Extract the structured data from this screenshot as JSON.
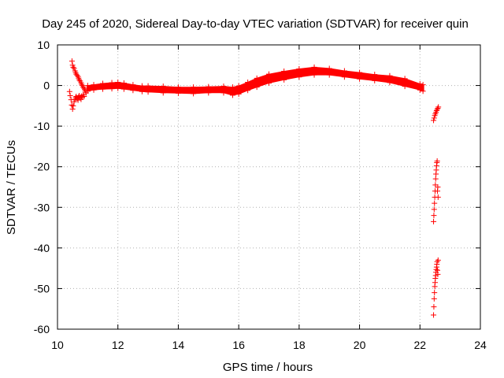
{
  "chart_data": {
    "type": "scatter",
    "title": "Day 245 of 2020, Sidereal Day-to-day VTEC variation (SDTVAR) for receiver quin",
    "xlabel": "GPS time / hours",
    "ylabel": "SDTVAR / TECUs",
    "xlim": [
      10,
      24
    ],
    "ylim": [
      -60,
      10
    ],
    "xticks": [
      10,
      12,
      14,
      16,
      18,
      20,
      22,
      24
    ],
    "yticks": [
      10,
      0,
      -10,
      -20,
      -30,
      -40,
      -50,
      -60
    ],
    "grid": true,
    "marker": "plus",
    "color": "#ff0000",
    "series": [
      {
        "name": "band-main",
        "style": "band",
        "x": [
          11.0,
          11.2,
          11.5,
          11.8,
          12.0,
          12.2,
          12.5,
          12.8,
          13.0,
          13.5,
          14.0,
          14.5,
          15.0,
          15.5,
          15.8,
          16.0,
          16.3,
          16.6,
          17.0,
          17.5,
          18.0,
          18.5,
          19.0,
          19.5,
          20.0,
          20.5,
          21.0,
          21.5,
          22.0,
          22.1
        ],
        "upper": [
          -0.2,
          0.0,
          0.3,
          0.5,
          0.6,
          0.4,
          0.0,
          -0.3,
          -0.3,
          -0.4,
          -0.6,
          -0.6,
          -0.5,
          -0.4,
          -0.6,
          -0.3,
          0.6,
          1.6,
          2.6,
          3.3,
          3.9,
          4.3,
          4.0,
          3.4,
          3.0,
          2.5,
          2.2,
          1.5,
          0.2,
          0.0
        ],
        "lower": [
          -1.2,
          -0.9,
          -0.7,
          -0.6,
          -0.5,
          -0.7,
          -1.0,
          -1.3,
          -1.4,
          -1.6,
          -1.7,
          -1.8,
          -1.6,
          -1.6,
          -2.2,
          -1.9,
          -1.0,
          -0.2,
          0.8,
          1.6,
          2.3,
          2.8,
          2.8,
          2.3,
          1.8,
          1.4,
          0.9,
          0.0,
          -0.9,
          -1.2
        ]
      },
      {
        "name": "segment-10.5h",
        "style": "points",
        "x": [
          10.48,
          10.5,
          10.52,
          10.55,
          10.58,
          10.6,
          10.62,
          10.65,
          10.68,
          10.7,
          10.72,
          10.75,
          10.78,
          10.8,
          10.82,
          10.85,
          10.88,
          10.9,
          10.92,
          10.95
        ],
        "y": [
          6.0,
          5.0,
          4.5,
          4.2,
          3.6,
          3.2,
          2.8,
          2.5,
          2.2,
          1.8,
          1.4,
          1.1,
          0.7,
          0.3,
          0.0,
          -0.4,
          -0.7,
          -1.0,
          -1.4,
          -1.8
        ]
      },
      {
        "name": "segment-10.5h-lower",
        "style": "points",
        "x": [
          10.4,
          10.42,
          10.45,
          10.47,
          10.5,
          10.52,
          10.55,
          10.58,
          10.6,
          10.62,
          10.65,
          10.68,
          10.7,
          10.72,
          10.75,
          10.78,
          10.8,
          10.82,
          10.85,
          10.88
        ],
        "y": [
          -1.5,
          -2.5,
          -3.5,
          -4.8,
          -5.8,
          -5.0,
          -4.0,
          -3.4,
          -3.0,
          -2.7,
          -3.2,
          -3.6,
          -2.8,
          -2.5,
          -3.0,
          -3.4,
          -2.6,
          -2.9,
          -2.3,
          -2.7
        ]
      },
      {
        "name": "segment-22.5h-a",
        "style": "points",
        "x": [
          22.45,
          22.47,
          22.49,
          22.51,
          22.53,
          22.55,
          22.57,
          22.59,
          22.61
        ],
        "y": [
          -8.6,
          -8.0,
          -7.4,
          -7.0,
          -6.6,
          -6.2,
          -5.9,
          -5.6,
          -5.3
        ]
      },
      {
        "name": "segment-22.5h-b",
        "style": "points",
        "x": [
          22.45,
          22.46,
          22.47,
          22.48,
          22.49,
          22.5,
          22.51,
          22.52,
          22.53,
          22.54,
          22.55,
          22.56,
          22.57,
          22.58,
          22.59,
          22.6
        ],
        "y": [
          -33.5,
          -32.0,
          -30.5,
          -29.0,
          -27.5,
          -26.0,
          -24.5,
          -23.0,
          -21.8,
          -20.8,
          -19.8,
          -19.0,
          -18.6,
          -26.0,
          -25.0,
          -27.5
        ]
      },
      {
        "name": "segment-22.5h-c",
        "style": "points",
        "x": [
          22.45,
          22.46,
          22.47,
          22.48,
          22.49,
          22.5,
          22.51,
          22.52,
          22.53,
          22.54,
          22.55,
          22.56,
          22.57,
          22.58,
          22.59,
          22.6
        ],
        "y": [
          -56.5,
          -54.5,
          -52.5,
          -51.0,
          -49.5,
          -48.5,
          -47.5,
          -46.8,
          -46.0,
          -45.3,
          -44.7,
          -44.0,
          -43.4,
          -45.5,
          -46.5,
          -43.0
        ]
      }
    ]
  }
}
